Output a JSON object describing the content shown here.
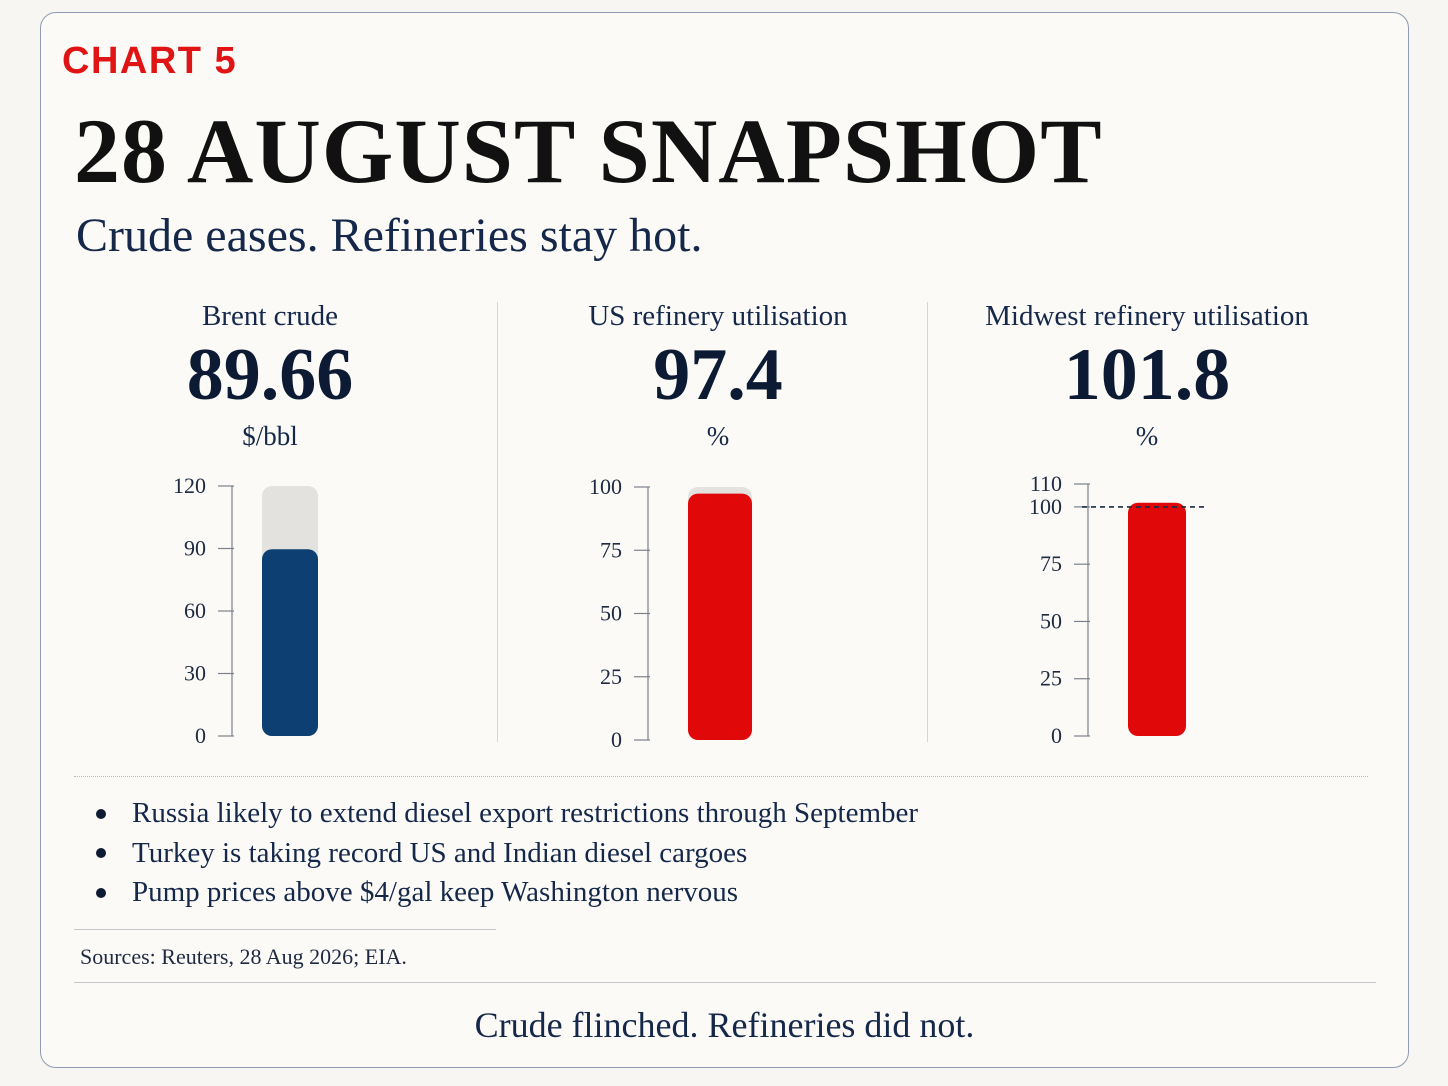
{
  "header": {
    "label": "CHART 5",
    "title": "28 AUGUST SNAPSHOT",
    "subtitle": "Crude eases. Refineries stay hot."
  },
  "colors": {
    "accent_red": "#e01414",
    "navy": "#0d3f73",
    "track_grey": "#e3e2df",
    "text_navy": "#15284a"
  },
  "chart_data": [
    {
      "type": "bar",
      "title": "Brent crude",
      "display_value": "89.66",
      "unit": "$/bbl",
      "values": [
        89.66
      ],
      "ylim": [
        0,
        120
      ],
      "ticks": [
        0,
        30,
        60,
        90,
        120
      ],
      "bar_color": "#0d3f73",
      "track": true,
      "reference": null
    },
    {
      "type": "bar",
      "title": "US refinery utilisation",
      "display_value": "97.4",
      "unit": "%",
      "values": [
        97.4
      ],
      "ylim": [
        0,
        100
      ],
      "ticks": [
        0,
        25,
        50,
        75,
        100
      ],
      "bar_color": "#e00808",
      "track": true,
      "reference": null
    },
    {
      "type": "bar",
      "title": "Midwest refinery utilisation",
      "display_value": "101.8",
      "unit": "%",
      "values": [
        101.8
      ],
      "ylim": [
        0,
        110
      ],
      "ticks": [
        0,
        25,
        50,
        75,
        100,
        110
      ],
      "bar_color": "#e00808",
      "track": false,
      "reference": 100
    }
  ],
  "bullets": [
    "Russia likely to extend diesel export restrictions through September",
    "Turkey is taking record US and Indian diesel cargoes",
    "Pump prices above $4/gal keep Washington nervous"
  ],
  "sources": "Sources: Reuters, 28 Aug 2026; EIA.",
  "footer": "Crude flinched. Refineries did not."
}
